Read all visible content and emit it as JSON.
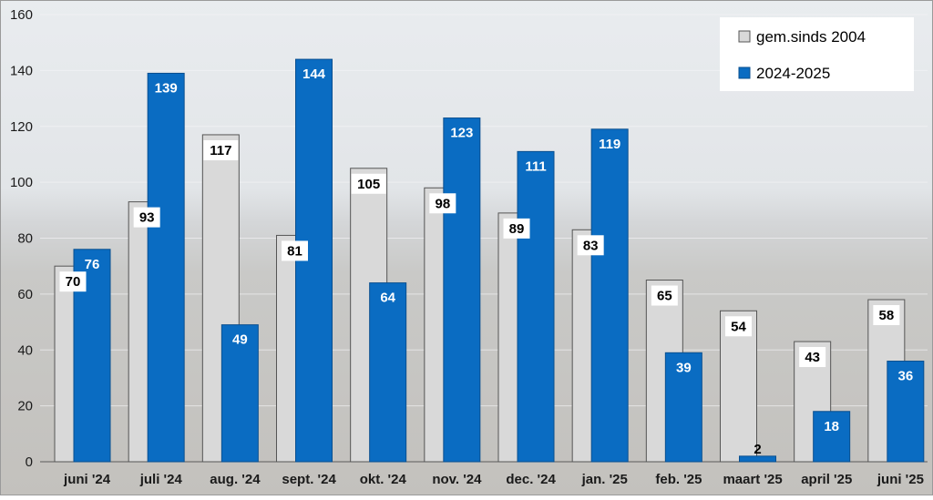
{
  "chart_data": {
    "type": "bar",
    "title": "",
    "xlabel": "",
    "ylabel": "",
    "categories": [
      "juni '24",
      "juli '24",
      "aug. '24",
      "sept. '24",
      "okt. '24",
      "nov. '24",
      "dec. '24",
      "jan. '25",
      "feb. '25",
      "maart '25",
      "april '25",
      "juni '25"
    ],
    "series": [
      {
        "name": "gem.sinds 2004",
        "values": [
          70,
          93,
          117,
          81,
          105,
          98,
          89,
          83,
          65,
          54,
          43,
          58
        ]
      },
      {
        "name": "2024-2025",
        "values": [
          76,
          139,
          49,
          144,
          64,
          123,
          111,
          119,
          39,
          2,
          18,
          36
        ]
      }
    ],
    "ylim": [
      0,
      160
    ],
    "yticks": [
      0,
      20,
      40,
      60,
      80,
      100,
      120,
      140,
      160
    ],
    "grid": true,
    "legend_position": "top-right",
    "data_labels": true,
    "colors": {
      "gem.sinds 2004": "#d9d9d9",
      "2024-2025": "#0a6cc2",
      "bar_outline": "#555555",
      "label_dark": "#000000",
      "label_light": "#ffffff"
    }
  }
}
